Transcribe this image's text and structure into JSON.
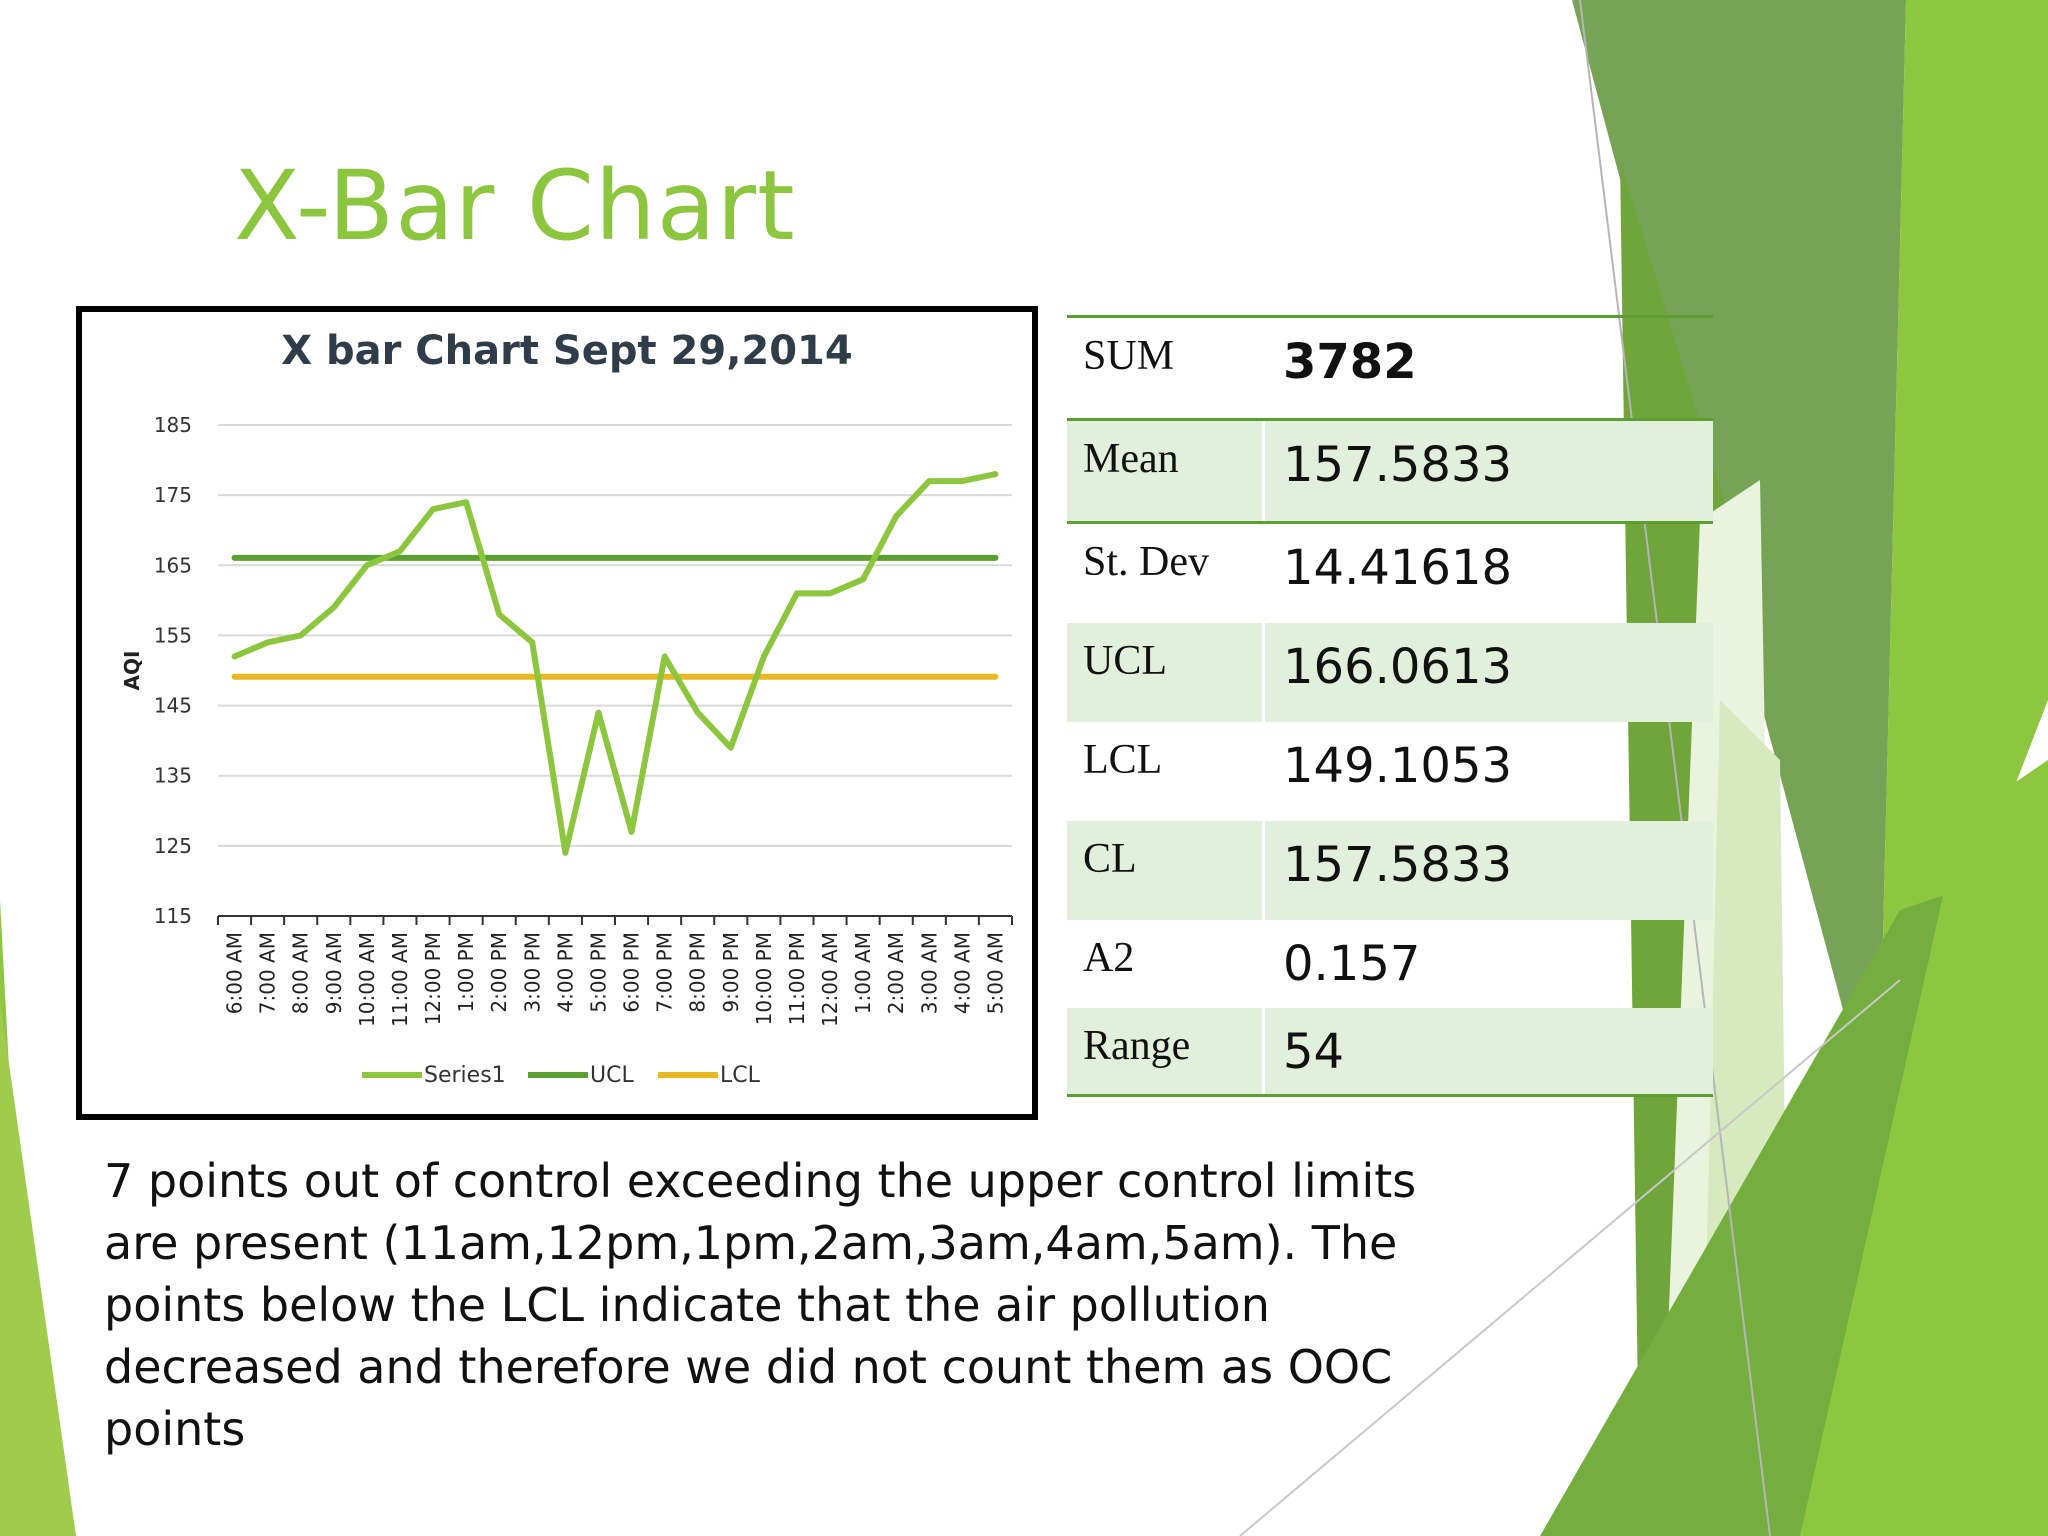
{
  "slide": {
    "title": "X-Bar Chart",
    "note": "7 points out of control exceeding the upper control limits are present (11am,12pm,1pm,2am,3am,4am,5am). The points below the LCL indicate that the air pollution decreased and therefore we did not count them as OOC points"
  },
  "stats": {
    "rows": [
      {
        "label": "SUM",
        "value": "3782"
      },
      {
        "label": "Mean",
        "value": "157.5833"
      },
      {
        "label": "St. Dev",
        "value": "14.41618"
      },
      {
        "label": "UCL",
        "value": "166.0613"
      },
      {
        "label": "LCL",
        "value": "149.1053"
      },
      {
        "label": "CL",
        "value": "157.5833"
      },
      {
        "label": "A2",
        "value": "0.157"
      },
      {
        "label": "Range",
        "value": "54"
      }
    ]
  },
  "colors": {
    "title": "#8cc63f",
    "series1": "#8cc63f",
    "ucl": "#5ca032",
    "lcl": "#e8b923",
    "table_rule": "#5c9e31",
    "table_shade": "#e2efda"
  },
  "chart_data": {
    "type": "line",
    "title": "X bar Chart Sept 29,2014",
    "xlabel": "",
    "ylabel": "AQI",
    "ylim": [
      115,
      185
    ],
    "yticks": [
      185,
      175,
      165,
      155,
      145,
      135,
      125,
      115
    ],
    "grid": true,
    "legend": "bottom",
    "categories": [
      "6:00 AM",
      "7:00 AM",
      "8:00 AM",
      "9:00 AM",
      "10:00 AM",
      "11:00 AM",
      "12:00 PM",
      "1:00 PM",
      "2:00 PM",
      "3:00 PM",
      "4:00 PM",
      "5:00 PM",
      "6:00 PM",
      "7:00 PM",
      "8:00 PM",
      "9:00 PM",
      "10:00 PM",
      "11:00 PM",
      "12:00 AM",
      "1:00 AM",
      "2:00 AM",
      "3:00 AM",
      "4:00 AM",
      "5:00 AM"
    ],
    "series": [
      {
        "name": "Series1",
        "values": [
          152,
          154,
          155,
          159,
          165,
          167,
          173,
          174,
          158,
          154,
          124,
          144,
          127,
          152,
          144,
          139,
          152,
          161,
          161,
          163,
          172,
          177,
          177,
          178
        ]
      },
      {
        "name": "UCL",
        "values": [
          166.0613,
          166.0613,
          166.0613,
          166.0613,
          166.0613,
          166.0613,
          166.0613,
          166.0613,
          166.0613,
          166.0613,
          166.0613,
          166.0613,
          166.0613,
          166.0613,
          166.0613,
          166.0613,
          166.0613,
          166.0613,
          166.0613,
          166.0613,
          166.0613,
          166.0613,
          166.0613,
          166.0613
        ]
      },
      {
        "name": "LCL",
        "values": [
          149.1053,
          149.1053,
          149.1053,
          149.1053,
          149.1053,
          149.1053,
          149.1053,
          149.1053,
          149.1053,
          149.1053,
          149.1053,
          149.1053,
          149.1053,
          149.1053,
          149.1053,
          149.1053,
          149.1053,
          149.1053,
          149.1053,
          149.1053,
          149.1053,
          149.1053,
          149.1053,
          149.1053
        ]
      }
    ]
  }
}
